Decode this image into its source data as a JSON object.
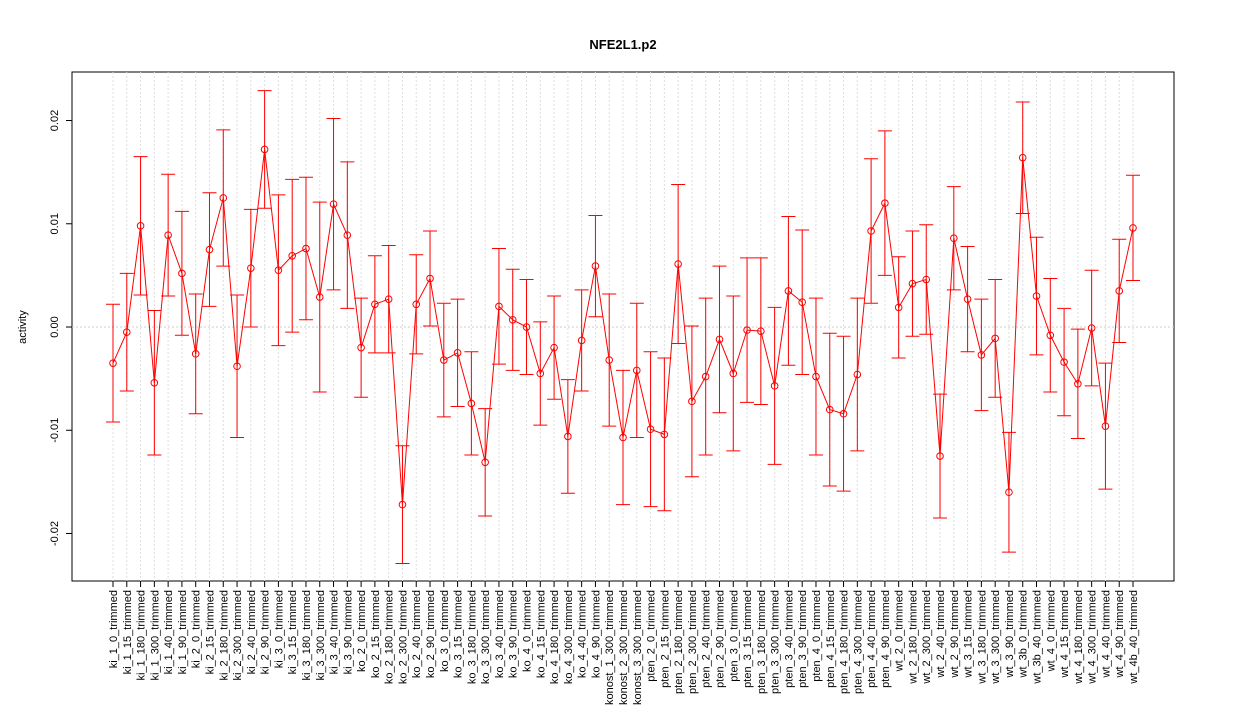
{
  "chart_data": {
    "type": "line",
    "title": "NFE2L1.p2",
    "ylabel": "activity",
    "categories": [
      "ki_1_0_trimmed",
      "ki_1_15_trimmed",
      "ki_1_180_trimmed",
      "ki_1_300_trimmed",
      "ki_1_40_trimmed",
      "ki_1_90_trimmed",
      "ki_2_0_trimmed",
      "ki_2_15_trimmed",
      "ki_2_180_trimmed",
      "ki_2_300_trimmed",
      "ki_2_40_trimmed",
      "ki_2_90_trimmed",
      "ki_3_0_trimmed",
      "ki_3_15_trimmed",
      "ki_3_180_trimmed",
      "ki_3_300_trimmed",
      "ki_3_40_trimmed",
      "ki_3_90_trimmed",
      "ko_2_0_trimmed",
      "ko_2_15_trimmed",
      "ko_2_180_trimmed",
      "ko_2_300_trimmed",
      "ko_2_40_trimmed",
      "ko_2_90_trimmed",
      "ko_3_0_trimmed",
      "ko_3_15_trimmed",
      "ko_3_180_trimmed",
      "ko_3_300_trimmed",
      "ko_3_40_trimmed",
      "ko_3_90_trimmed",
      "ko_4_0_trimmed",
      "ko_4_15_trimmed",
      "ko_4_180_trimmed",
      "ko_4_300_trimmed",
      "ko_4_40_trimmed",
      "ko_4_90_trimmed",
      "konost_1_300_trimmed",
      "konost_2_300_trimmed",
      "konost_3_300_trimmed",
      "pten_2_0_trimmed",
      "pten_2_15_trimmed",
      "pten_2_180_trimmed",
      "pten_2_300_trimmed",
      "pten_2_40_trimmed",
      "pten_2_90_trimmed",
      "pten_3_0_trimmed",
      "pten_3_15_trimmed",
      "pten_3_180_trimmed",
      "pten_3_300_trimmed",
      "pten_3_40_trimmed",
      "pten_3_90_trimmed",
      "pten_4_0_trimmed",
      "pten_4_15_trimmed",
      "pten_4_180_trimmed",
      "pten_4_300_trimmed",
      "pten_4_40_trimmed",
      "pten_4_90_trimmed",
      "wt_2_0_trimmed",
      "wt_2_180_trimmed",
      "wt_2_300_trimmed",
      "wt_2_40_trimmed",
      "wt_2_90_trimmed",
      "wt_3_15_trimmed",
      "wt_3_180_trimmed",
      "wt_3_300_trimmed",
      "wt_3_90_trimmed",
      "wt_3b_0_trimmed",
      "wt_3b_40_trimmed",
      "wt_4_0_trimmed",
      "wt_4_15_trimmed",
      "wt_4_180_trimmed",
      "wt_4_300_trimmed",
      "wt_4_40_trimmed",
      "wt_4_90_trimmed",
      "wt_4b_40_trimmed"
    ],
    "color": "#ff0000",
    "values": [
      -0.0035,
      -0.0005,
      0.0098,
      -0.0054,
      0.0089,
      0.0052,
      -0.0026,
      0.0075,
      0.0125,
      -0.0038,
      0.0057,
      0.0172,
      0.0055,
      0.0069,
      0.0076,
      0.0029,
      0.0119,
      0.0089,
      -0.002,
      0.0022,
      0.0027,
      -0.0172,
      0.0022,
      0.0047,
      -0.0032,
      -0.0025,
      -0.0074,
      -0.0131,
      0.002,
      0.0007,
      0.0,
      -0.0045,
      -0.002,
      -0.0106,
      -0.0013,
      0.0059,
      -0.0032,
      -0.0107,
      -0.0042,
      -0.0099,
      -0.0104,
      0.0061,
      -0.0072,
      -0.0048,
      -0.0012,
      -0.0045,
      -0.0003,
      -0.0004,
      -0.0057,
      0.0035,
      0.0024,
      -0.0048,
      -0.008,
      -0.0084,
      -0.0046,
      0.0093,
      0.012,
      0.0019,
      0.0042,
      0.0046,
      -0.0125,
      0.0086,
      0.0027,
      -0.0027,
      -0.0011,
      -0.016,
      0.0164,
      0.003,
      -0.0008,
      -0.0034,
      -0.0055,
      -0.0001,
      -0.0096,
      0.0035,
      0.0096
    ],
    "errors": [
      0.0057,
      0.0057,
      0.0067,
      0.007,
      0.0059,
      0.006,
      0.0058,
      0.0055,
      0.0066,
      0.0069,
      0.0057,
      0.0057,
      0.0073,
      0.0074,
      0.0069,
      0.0092,
      0.0083,
      0.0071,
      0.0048,
      0.0047,
      0.0052,
      0.0057,
      0.0048,
      0.0046,
      0.0055,
      0.0052,
      0.005,
      0.0052,
      0.0056,
      0.0049,
      0.0046,
      0.005,
      0.005,
      0.0055,
      0.0049,
      0.0049,
      0.0064,
      0.0065,
      0.0065,
      0.0075,
      0.0074,
      0.0077,
      0.0073,
      0.0076,
      0.0071,
      0.0075,
      0.007,
      0.0071,
      0.0076,
      0.0072,
      0.007,
      0.0076,
      0.0074,
      0.0075,
      0.0074,
      0.007,
      0.007,
      0.0049,
      0.0051,
      0.0053,
      0.006,
      0.005,
      0.0051,
      0.0054,
      0.0057,
      0.0058,
      0.0054,
      0.0057,
      0.0055,
      0.0052,
      0.0053,
      0.0056,
      0.0061,
      0.005,
      0.0051
    ],
    "ylim": [
      -0.0246,
      0.0247
    ],
    "yticks": [
      -0.02,
      -0.01,
      {
        "value": 0,
        "label": "0.00"
      },
      0.01,
      0.02
    ],
    "hline": 0,
    "grid": true
  }
}
